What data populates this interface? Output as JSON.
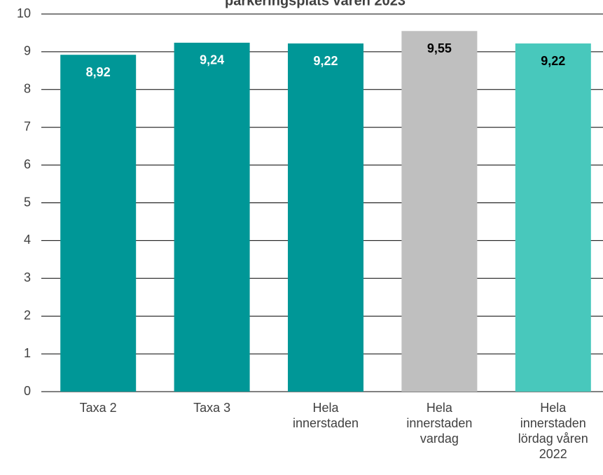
{
  "chart_data": {
    "type": "bar",
    "title": "parkeringsplats våren 2023",
    "categories": [
      "Taxa 2",
      "Taxa 3",
      "Hela innerstaden",
      "Hela innerstaden vardag",
      "Hela innerstaden lördag våren 2022"
    ],
    "values": [
      8.92,
      9.24,
      9.22,
      9.55,
      9.22
    ],
    "value_labels": [
      "8,92",
      "9,24",
      "9,22",
      "9,55",
      "9,22"
    ],
    "colors": [
      "#009797",
      "#009797",
      "#009797",
      "#bfbfbf",
      "#48c8bc"
    ],
    "value_label_colors": [
      "#ffffff",
      "#ffffff",
      "#ffffff",
      "#000000",
      "#000000"
    ],
    "ylim": [
      0,
      10
    ],
    "yticks": [
      0,
      1,
      2,
      3,
      4,
      5,
      6,
      7,
      8,
      9,
      10
    ],
    "grid": true
  }
}
